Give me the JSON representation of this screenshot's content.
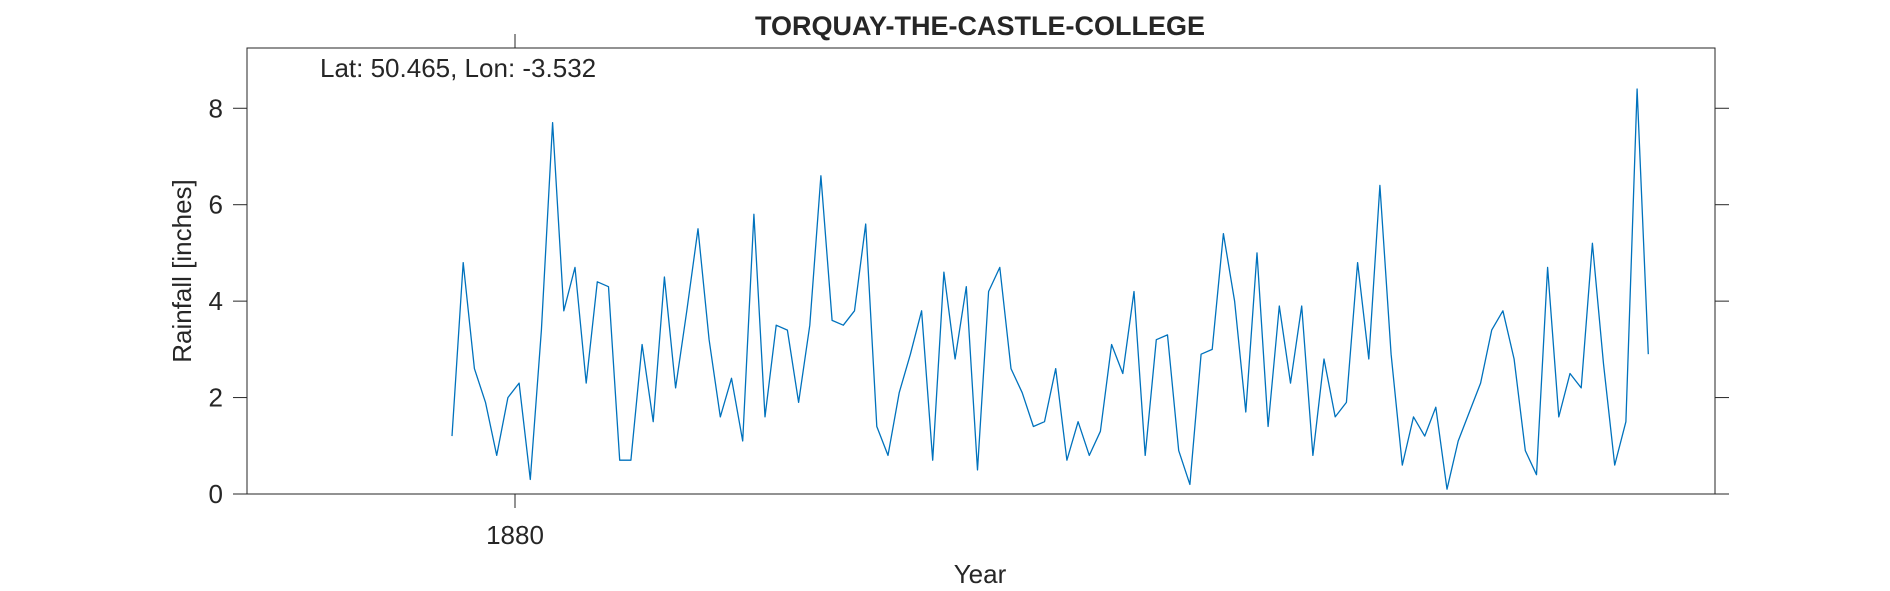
{
  "chart_data": {
    "type": "line",
    "title": "TORQUAY-THE-CASTLE-COLLEGE",
    "annotation": "Lat: 50.465, Lon: -3.532",
    "xlabel": "Year",
    "ylabel": "Rainfall [inches]",
    "ylim": [
      0,
      9.25
    ],
    "xticks": [
      {
        "value": 1880,
        "label": "1880"
      }
    ],
    "yticks": [
      {
        "value": 0,
        "label": "0"
      },
      {
        "value": 2,
        "label": "2"
      },
      {
        "value": 4,
        "label": "4"
      },
      {
        "value": 6,
        "label": "6"
      },
      {
        "value": 8,
        "label": "8"
      }
    ],
    "grid": false,
    "series": [
      {
        "color": "#0072BD",
        "values": [
          1.2,
          4.8,
          2.6,
          1.9,
          0.8,
          2.0,
          2.3,
          0.3,
          3.4,
          7.7,
          3.8,
          4.7,
          2.3,
          4.4,
          4.3,
          0.7,
          0.7,
          3.1,
          1.5,
          4.5,
          2.2,
          3.8,
          5.5,
          3.2,
          1.6,
          2.4,
          1.1,
          5.8,
          1.6,
          3.5,
          3.4,
          1.9,
          3.5,
          6.6,
          3.6,
          3.5,
          3.8,
          5.6,
          1.4,
          0.8,
          2.1,
          2.9,
          3.8,
          0.7,
          4.6,
          2.8,
          4.3,
          0.5,
          4.2,
          4.7,
          2.6,
          2.1,
          1.4,
          1.5,
          2.6,
          0.7,
          1.5,
          0.8,
          1.3,
          3.1,
          2.5,
          4.2,
          0.8,
          3.2,
          3.3,
          0.9,
          0.2,
          2.9,
          3.0,
          5.4,
          4.0,
          1.7,
          5.0,
          1.4,
          3.9,
          2.3,
          3.9,
          0.8,
          2.8,
          1.6,
          1.9,
          4.8,
          2.8,
          6.4,
          2.9,
          0.6,
          1.6,
          1.2,
          1.8,
          0.1,
          1.1,
          1.7,
          2.3,
          3.4,
          3.8,
          2.8,
          0.9,
          0.4,
          4.7,
          1.6,
          2.5,
          2.2,
          5.2,
          2.7,
          0.6,
          1.5,
          8.4,
          2.9
        ]
      }
    ]
  }
}
